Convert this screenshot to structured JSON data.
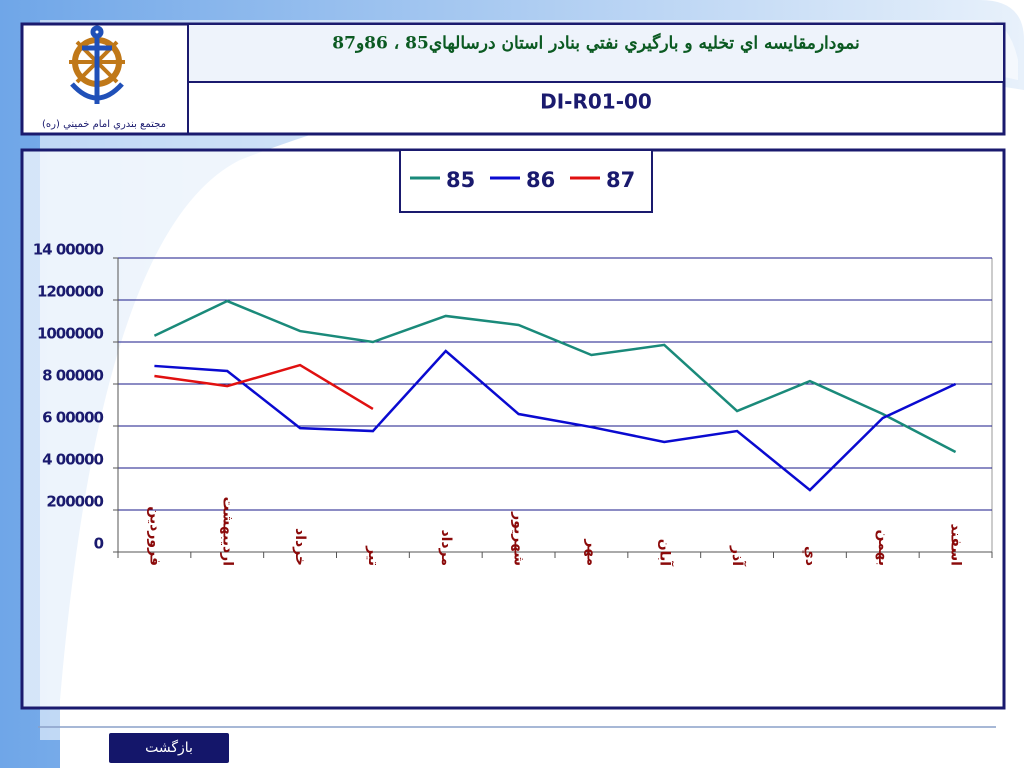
{
  "header": {
    "title": "نمودارمقايسه اي تخليه و بارگيري نفتي بنادر استان درسالهاي85 ، 86و87",
    "code": "DI-R01-00",
    "logo_caption": "مجتمع بندري امام خميني (ره)"
  },
  "footer": {
    "button": "بازگشت"
  },
  "chart_data": {
    "type": "line",
    "categories": [
      "فروردين",
      "ارديبهشت",
      "خرداد",
      "تير",
      "مرداد",
      "شهريور",
      "مهر",
      "آبان",
      "آذر",
      "دي",
      "بهمن",
      "اسفند"
    ],
    "series": [
      {
        "name": "85",
        "color": "#1a8a7a",
        "values": [
          1030000,
          1195000,
          1052000,
          1000000,
          1124000,
          1081000,
          938000,
          986000,
          671000,
          814000,
          657000,
          476000
        ]
      },
      {
        "name": "86",
        "color": "#0a0ad0",
        "values": [
          886000,
          862000,
          590000,
          576000,
          957000,
          657000,
          595000,
          524000,
          576000,
          295000,
          638000,
          800000
        ]
      },
      {
        "name": "87",
        "color": "#e01010",
        "values": [
          838000,
          790000,
          890000,
          681000,
          null,
          null,
          null,
          null,
          null,
          null,
          null,
          null
        ]
      }
    ],
    "ylim": [
      0,
      1400000
    ],
    "yticks": [
      0,
      {
        "value": 200000,
        "label": "200000"
      },
      {
        "value": 400000,
        "label": "4 00000"
      },
      {
        "value": 600000,
        "label": "6 00000"
      },
      {
        "value": 800000,
        "label": "8 00000"
      },
      1000000,
      1200000,
      {
        "value": 1400000,
        "label": "14 00000"
      }
    ],
    "grid": true,
    "legend": "top"
  }
}
